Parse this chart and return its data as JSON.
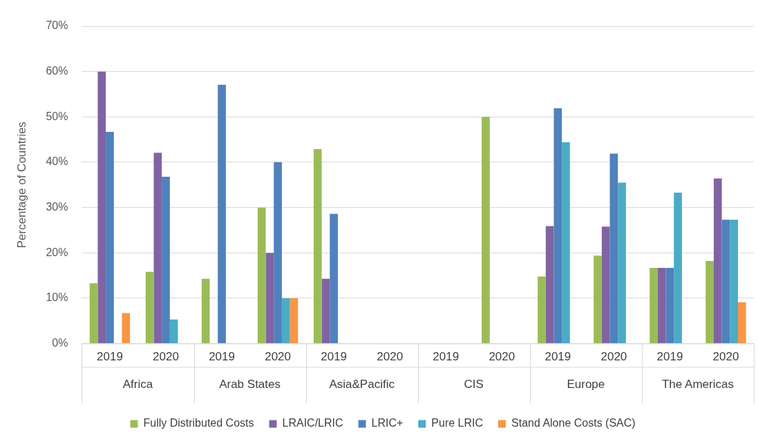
{
  "chart_data": {
    "type": "bar",
    "ylabel": "Percentage of Countries",
    "categories": [
      "2019",
      "2020",
      "2019",
      "2020",
      "2019",
      "2020",
      "2019",
      "2020",
      "2019",
      "2020",
      "2019",
      "2020"
    ],
    "annotations": [
      "Africa",
      "Arab States",
      "Asia&Pacific",
      "CIS",
      "Europe",
      "The Americas"
    ],
    "series": [
      {
        "name": "Fully Distributed Costs",
        "color": "#9bbb59",
        "values": [
          13.3,
          15.8,
          14.3,
          30,
          42.9,
          0,
          0,
          50,
          14.8,
          19.4,
          16.7,
          18.2
        ]
      },
      {
        "name": "LRAIC/LRIC",
        "color": "#8064a2",
        "values": [
          60,
          42.1,
          0,
          20,
          14.3,
          0,
          0,
          0,
          25.9,
          25.8,
          16.7,
          36.4
        ]
      },
      {
        "name": "LRIC+",
        "color": "#4f81bd",
        "values": [
          46.7,
          36.8,
          57.1,
          40,
          28.6,
          0,
          0,
          0,
          51.9,
          41.9,
          16.7,
          27.3
        ]
      },
      {
        "name": "Pure LRIC",
        "color": "#4bacc6",
        "values": [
          0,
          5.3,
          0,
          10,
          0,
          0,
          0,
          0,
          44.4,
          35.5,
          33.3,
          27.3
        ]
      },
      {
        "name": "Stand Alone Costs (SAC)",
        "color": "#f79646",
        "values": [
          6.7,
          0,
          0,
          10,
          0,
          0,
          0,
          0,
          0,
          0,
          0,
          9.1
        ]
      }
    ],
    "ylim": [
      0,
      70
    ],
    "yticks": [
      {
        "value": 0,
        "label": "0%"
      },
      {
        "value": 10,
        "label": "10%"
      },
      {
        "value": 20,
        "label": "20%"
      },
      {
        "value": 30,
        "label": "30%"
      },
      {
        "value": 40,
        "label": "40%"
      },
      {
        "value": 50,
        "label": "50%"
      },
      {
        "value": 60,
        "label": "60%"
      },
      {
        "value": 70,
        "label": "70%"
      }
    ],
    "grid": "y",
    "legend": "bottom"
  }
}
